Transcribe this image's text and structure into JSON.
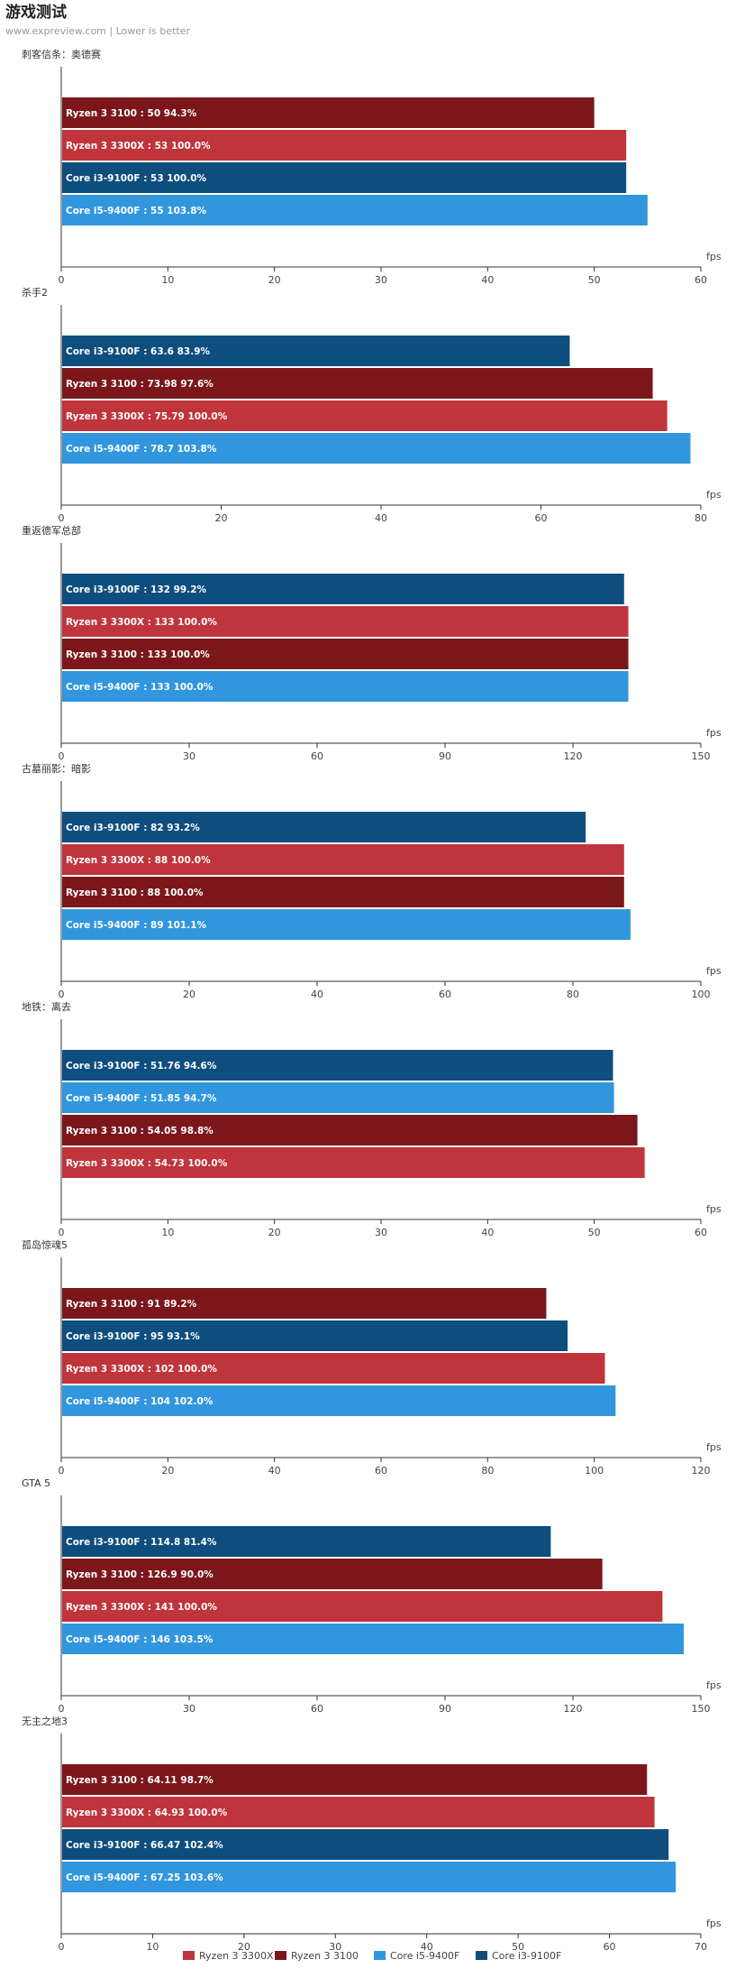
{
  "header": {
    "title": "游戏测试",
    "subtitle": "www.expreview.com | Lower is better"
  },
  "series_colors": {
    "Ryzen 3 3300X": "#c0343c",
    "Ryzen 3 3100": "#7b171b",
    "Core i5-9400F": "#3196de",
    "Core i3-9100F": "#0e4e7e"
  },
  "legend": [
    "Ryzen 3 3300X",
    "Ryzen 3 3100",
    "Core i5-9400F",
    "Core i3-9100F"
  ],
  "chart_data": [
    {
      "type": "bar",
      "orientation": "horizontal",
      "title": "刺客信条：奥德赛",
      "unit": "fps",
      "xlim": [
        0,
        60
      ],
      "ticks": [
        0,
        10,
        20,
        30,
        40,
        50,
        60
      ],
      "bars": [
        {
          "series": "Ryzen 3 3100",
          "label": "Ryzen 3 3100 : 50  94.3%",
          "value": 50
        },
        {
          "series": "Ryzen 3 3300X",
          "label": "Ryzen 3 3300X : 53  100.0%",
          "value": 53
        },
        {
          "series": "Core i3-9100F",
          "label": "Core i3-9100F : 53  100.0%",
          "value": 53
        },
        {
          "series": "Core i5-9400F",
          "label": "Core i5-9400F  : 55  103.8%",
          "value": 55
        }
      ]
    },
    {
      "type": "bar",
      "orientation": "horizontal",
      "title": "杀手2",
      "unit": "fps",
      "xlim": [
        0,
        80
      ],
      "ticks": [
        0,
        20,
        40,
        60,
        80
      ],
      "bars": [
        {
          "series": "Core i3-9100F",
          "label": "Core i3-9100F : 63.6  83.9%",
          "value": 63.6
        },
        {
          "series": "Ryzen 3 3100",
          "label": "Ryzen 3 3100 : 73.98  97.6%",
          "value": 73.98
        },
        {
          "series": "Ryzen 3 3300X",
          "label": "Ryzen 3 3300X : 75.79  100.0%",
          "value": 75.79
        },
        {
          "series": "Core i5-9400F",
          "label": "Core i5-9400F  : 78.7  103.8%",
          "value": 78.7
        }
      ]
    },
    {
      "type": "bar",
      "orientation": "horizontal",
      "title": "重返德军总部",
      "unit": "fps",
      "xlim": [
        0,
        150
      ],
      "ticks": [
        0,
        30,
        60,
        90,
        120,
        150
      ],
      "bars": [
        {
          "series": "Core i3-9100F",
          "label": "Core i3-9100F : 132  99.2%",
          "value": 132
        },
        {
          "series": "Ryzen 3 3300X",
          "label": "Ryzen 3 3300X : 133  100.0%",
          "value": 133
        },
        {
          "series": "Ryzen 3 3100",
          "label": "Ryzen 3 3100 : 133  100.0%",
          "value": 133
        },
        {
          "series": "Core i5-9400F",
          "label": "Core i5-9400F  : 133  100.0%",
          "value": 133
        }
      ]
    },
    {
      "type": "bar",
      "orientation": "horizontal",
      "title": "古墓丽影：暗影",
      "unit": "fps",
      "xlim": [
        0,
        100
      ],
      "ticks": [
        0,
        20,
        40,
        60,
        80,
        100
      ],
      "bars": [
        {
          "series": "Core i3-9100F",
          "label": "Core i3-9100F : 82  93.2%",
          "value": 82
        },
        {
          "series": "Ryzen 3 3300X",
          "label": "Ryzen 3 3300X : 88  100.0%",
          "value": 88
        },
        {
          "series": "Ryzen 3 3100",
          "label": "Ryzen 3 3100 : 88  100.0%",
          "value": 88
        },
        {
          "series": "Core i5-9400F",
          "label": "Core i5-9400F  : 89  101.1%",
          "value": 89
        }
      ]
    },
    {
      "type": "bar",
      "orientation": "horizontal",
      "title": "地铁：离去",
      "unit": "fps",
      "xlim": [
        0,
        60
      ],
      "ticks": [
        0,
        10,
        20,
        30,
        40,
        50,
        60
      ],
      "bars": [
        {
          "series": "Core i3-9100F",
          "label": "Core i3-9100F : 51.76  94.6%",
          "value": 51.76
        },
        {
          "series": "Core i5-9400F",
          "label": "Core i5-9400F  : 51.85  94.7%",
          "value": 51.85
        },
        {
          "series": "Ryzen 3 3100",
          "label": "Ryzen 3 3100 : 54.05  98.8%",
          "value": 54.05
        },
        {
          "series": "Ryzen 3 3300X",
          "label": "Ryzen 3 3300X : 54.73  100.0%",
          "value": 54.73
        }
      ]
    },
    {
      "type": "bar",
      "orientation": "horizontal",
      "title": "孤岛惊魂5",
      "unit": "fps",
      "xlim": [
        0,
        120
      ],
      "ticks": [
        0,
        20,
        40,
        60,
        80,
        100,
        120
      ],
      "bars": [
        {
          "series": "Ryzen 3 3100",
          "label": "Ryzen 3 3100 : 91  89.2%",
          "value": 91
        },
        {
          "series": "Core i3-9100F",
          "label": "Core i3-9100F : 95  93.1%",
          "value": 95
        },
        {
          "series": "Ryzen 3 3300X",
          "label": "Ryzen 3 3300X : 102  100.0%",
          "value": 102
        },
        {
          "series": "Core i5-9400F",
          "label": "Core i5-9400F  : 104  102.0%",
          "value": 104
        }
      ]
    },
    {
      "type": "bar",
      "orientation": "horizontal",
      "title": "GTA 5",
      "unit": "fps",
      "xlim": [
        0,
        150
      ],
      "ticks": [
        0,
        30,
        60,
        90,
        120,
        150
      ],
      "bars": [
        {
          "series": "Core i3-9100F",
          "label": "Core i3-9100F : 114.8  81.4%",
          "value": 114.8
        },
        {
          "series": "Ryzen 3 3100",
          "label": "Ryzen 3 3100 : 126.9  90.0%",
          "value": 126.9
        },
        {
          "series": "Ryzen 3 3300X",
          "label": "Ryzen 3 3300X : 141  100.0%",
          "value": 141
        },
        {
          "series": "Core i5-9400F",
          "label": "Core i5-9400F  : 146  103.5%",
          "value": 146
        }
      ]
    },
    {
      "type": "bar",
      "orientation": "horizontal",
      "title": "无主之地3",
      "unit": "fps",
      "xlim": [
        0,
        70
      ],
      "ticks": [
        0,
        10,
        20,
        30,
        40,
        50,
        60,
        70
      ],
      "bars": [
        {
          "series": "Ryzen 3 3100",
          "label": "Ryzen 3 3100 : 64.11  98.7%",
          "value": 64.11
        },
        {
          "series": "Ryzen 3 3300X",
          "label": "Ryzen 3 3300X : 64.93  100.0%",
          "value": 64.93
        },
        {
          "series": "Core i3-9100F",
          "label": "Core i3-9100F : 66.47  102.4%",
          "value": 66.47
        },
        {
          "series": "Core i5-9400F",
          "label": "Core i5-9400F  : 67.25  103.6%",
          "value": 67.25
        }
      ]
    }
  ]
}
